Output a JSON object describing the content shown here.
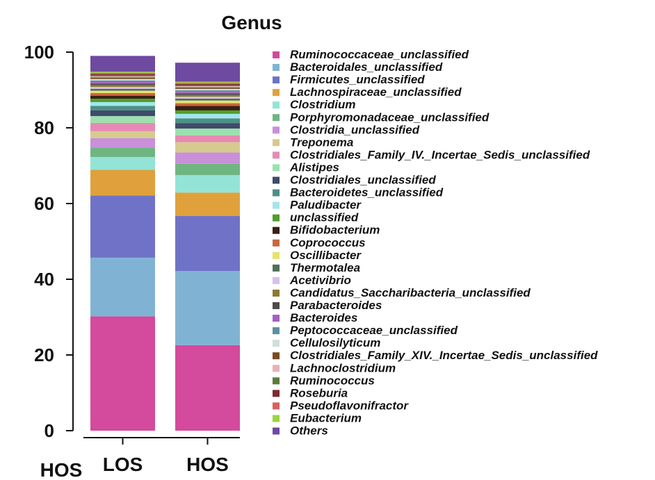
{
  "chart_data": {
    "type": "bar",
    "stacked": true,
    "title": "Genus",
    "xlabel": "HOS",
    "ylabel": "",
    "ylim": [
      0,
      100
    ],
    "yticks": [
      "0",
      "20",
      "40",
      "60",
      "80",
      "100"
    ],
    "grid": false,
    "legend_position": "right",
    "categories": [
      "LOS",
      "HOS"
    ],
    "series": [
      {
        "name": "Ruminococcaceae_unclassified",
        "color": "#d44a9c",
        "values": [
          30.2,
          22.6
        ]
      },
      {
        "name": "Bacteroidales_unclassified",
        "color": "#80b3d3",
        "values": [
          15.5,
          19.6
        ]
      },
      {
        "name": "Firmicutes_unclassified",
        "color": "#6f72c6",
        "values": [
          16.4,
          14.5
        ]
      },
      {
        "name": "Lachnospiraceae_unclassified",
        "color": "#e0a13c",
        "values": [
          6.8,
          6.2
        ]
      },
      {
        "name": "Clostridium",
        "color": "#93e4d6",
        "values": [
          3.4,
          4.6
        ]
      },
      {
        "name": "Porphyromonadaceae_unclassified",
        "color": "#6fb582",
        "values": [
          2.5,
          3.0
        ]
      },
      {
        "name": "Clostridia_unclassified",
        "color": "#c98fd9",
        "values": [
          2.5,
          3.0
        ]
      },
      {
        "name": "Treponema",
        "color": "#d6cb8e",
        "values": [
          1.8,
          2.7
        ]
      },
      {
        "name": "Clostridiales_Family_IV._Incertae_Sedis_unclassified",
        "color": "#e58ab4",
        "values": [
          2.2,
          1.8
        ]
      },
      {
        "name": "Alistipes",
        "color": "#9ce0ae",
        "values": [
          1.8,
          1.8
        ]
      },
      {
        "name": "Clostridiales_unclassified",
        "color": "#3f4a6b",
        "values": [
          1.5,
          1.4
        ]
      },
      {
        "name": "Bacteroidetes_unclassified",
        "color": "#4e8f86",
        "values": [
          1.2,
          1.3
        ]
      },
      {
        "name": "Paludibacter",
        "color": "#a2e6ec",
        "values": [
          1.0,
          1.2
        ]
      },
      {
        "name": "unclassified",
        "color": "#4f9e2e",
        "values": [
          0.9,
          0.9
        ]
      },
      {
        "name": "Bifidobacterium",
        "color": "#3a1f12",
        "values": [
          0.8,
          1.2
        ]
      },
      {
        "name": "Coprococcus",
        "color": "#c96640",
        "values": [
          0.7,
          0.7
        ]
      },
      {
        "name": "Oscillibacter",
        "color": "#e8e36a",
        "values": [
          0.6,
          0.7
        ]
      },
      {
        "name": "Thermotalea",
        "color": "#4f6f58",
        "values": [
          0.5,
          0.5
        ]
      },
      {
        "name": "Acetivibrio",
        "color": "#d7c0ec",
        "values": [
          0.5,
          0.5
        ]
      },
      {
        "name": "Candidatus_Saccharibacteria_unclassified",
        "color": "#8c7a32",
        "values": [
          0.5,
          0.5
        ]
      },
      {
        "name": "Parabacteroides",
        "color": "#4e4a4d",
        "values": [
          0.4,
          0.4
        ]
      },
      {
        "name": "Bacteroides",
        "color": "#a65fc4",
        "values": [
          0.4,
          0.4
        ]
      },
      {
        "name": "Peptococcaceae_unclassified",
        "color": "#5c8fa3",
        "values": [
          0.4,
          0.4
        ]
      },
      {
        "name": "Cellulosilyticum",
        "color": "#cfe0d7",
        "values": [
          0.4,
          0.4
        ]
      },
      {
        "name": "Clostridiales_Family_XIV._Incertae_Sedis_unclassified",
        "color": "#7a4b20",
        "values": [
          0.4,
          0.4
        ]
      },
      {
        "name": "Lachnoclostridium",
        "color": "#e8b1b9",
        "values": [
          0.3,
          0.3
        ]
      },
      {
        "name": "Ruminococcus",
        "color": "#5c7a3a",
        "values": [
          0.3,
          0.3
        ]
      },
      {
        "name": "Roseburia",
        "color": "#7a2a30",
        "values": [
          0.3,
          0.3
        ]
      },
      {
        "name": "Pseudoflavonifractor",
        "color": "#d9605d",
        "values": [
          0.3,
          0.3
        ]
      },
      {
        "name": "Eubacterium",
        "color": "#9bd43f",
        "values": [
          0.3,
          0.3
        ]
      },
      {
        "name": "Others",
        "color": "#6e4aa0",
        "values": [
          4.2,
          5.0
        ]
      }
    ]
  }
}
